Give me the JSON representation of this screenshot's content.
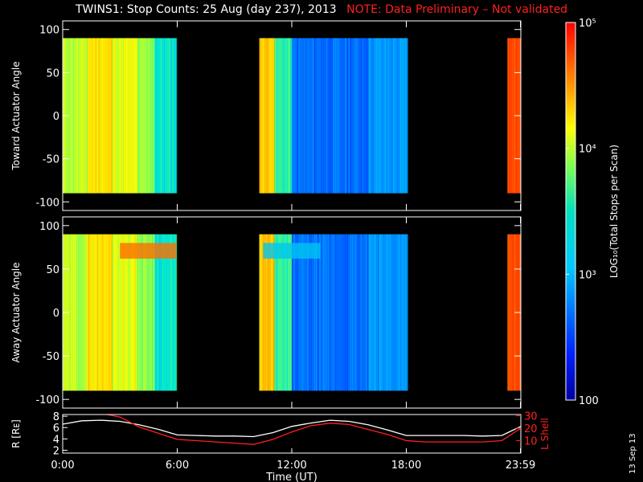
{
  "title": {
    "main": "TWINS1: Stop Counts: 25 Aug (day 237), 2013",
    "note": "NOTE: Data Preliminary – Not validated"
  },
  "stamp": "13 Sep 13",
  "colors": {
    "background": "#000000",
    "frame": "#ffffff",
    "note": "#ff2020",
    "r_line": "#ffffff",
    "lshell_line": "#ff2020"
  },
  "chart_data": [
    {
      "type": "heatmap",
      "panel": "toward",
      "ylabel": "Toward Actuator Angle",
      "ylim": [
        -110,
        110
      ],
      "yticks": [
        100,
        50,
        0,
        -50,
        -100
      ],
      "xlim_hours": [
        0,
        24
      ],
      "angle_range": [
        -90,
        90
      ],
      "data_segments_hours": [
        [
          0.0,
          5.95
        ],
        [
          10.3,
          18.05
        ],
        [
          23.3,
          23.98
        ]
      ],
      "log10_counts_by_time": [
        {
          "t_start": 0.0,
          "t_end": 1.3,
          "log10": 3.65
        },
        {
          "t_start": 1.3,
          "t_end": 2.6,
          "log10": 3.9
        },
        {
          "t_start": 2.6,
          "t_end": 3.9,
          "log10": 3.75
        },
        {
          "t_start": 3.9,
          "t_end": 4.8,
          "log10": 3.55
        },
        {
          "t_start": 4.8,
          "t_end": 5.95,
          "log10": 3.2
        },
        {
          "t_start": 10.3,
          "t_end": 11.1,
          "log10": 4.0
        },
        {
          "t_start": 11.1,
          "t_end": 12.0,
          "log10": 3.3
        },
        {
          "t_start": 12.0,
          "t_end": 16.0,
          "log10": 2.65
        },
        {
          "t_start": 16.0,
          "t_end": 18.05,
          "log10": 2.8
        },
        {
          "t_start": 23.3,
          "t_end": 23.98,
          "log10": 4.6
        }
      ]
    },
    {
      "type": "heatmap",
      "panel": "away",
      "ylabel": "Away Actuator Angle",
      "ylim": [
        -110,
        110
      ],
      "yticks": [
        100,
        50,
        0,
        -50,
        -100
      ],
      "xlim_hours": [
        0,
        24
      ],
      "angle_range": [
        -90,
        90
      ],
      "data_segments_hours": [
        [
          0.0,
          5.95
        ],
        [
          10.3,
          18.05
        ],
        [
          23.3,
          23.98
        ]
      ],
      "log10_counts_by_time": [
        {
          "t_start": 0.0,
          "t_end": 1.3,
          "log10": 3.65
        },
        {
          "t_start": 1.3,
          "t_end": 2.6,
          "log10": 3.9
        },
        {
          "t_start": 2.6,
          "t_end": 3.9,
          "log10": 3.75
        },
        {
          "t_start": 3.9,
          "t_end": 4.8,
          "log10": 3.55
        },
        {
          "t_start": 4.8,
          "t_end": 5.95,
          "log10": 3.2
        },
        {
          "t_start": 10.3,
          "t_end": 11.1,
          "log10": 4.0
        },
        {
          "t_start": 11.1,
          "t_end": 12.0,
          "log10": 3.3
        },
        {
          "t_start": 12.0,
          "t_end": 16.0,
          "log10": 2.65
        },
        {
          "t_start": 16.0,
          "t_end": 18.05,
          "log10": 2.8
        },
        {
          "t_start": 23.3,
          "t_end": 23.98,
          "log10": 4.6
        }
      ],
      "high_band": {
        "angle_range": [
          62,
          80
        ],
        "log10": 4.4
      }
    },
    {
      "type": "line",
      "panel": "orbit",
      "ylabel_left": "R [Rᴇ]",
      "ylabel_right": "L Shell",
      "xlabel": "Time (UT)",
      "xticks": [
        "0:00",
        "6:00",
        "12:00",
        "18:00",
        "23:59"
      ],
      "xtick_hours": [
        0,
        6,
        12,
        18,
        23.98
      ],
      "ylim_left": [
        1.5,
        8.3
      ],
      "yticks_left": [
        2,
        4,
        6,
        8
      ],
      "ylim_right": [
        0,
        31
      ],
      "yticks_right": [
        10,
        20,
        30
      ],
      "series": [
        {
          "name": "R",
          "axis": "left",
          "x": [
            0,
            1,
            2,
            3,
            4,
            5,
            6,
            7,
            8,
            9,
            10,
            11,
            12,
            13,
            14,
            15,
            16,
            17,
            18,
            19,
            20,
            21,
            22,
            23,
            24
          ],
          "y": [
            6.6,
            7.2,
            7.3,
            7.1,
            6.5,
            5.7,
            4.7,
            4.6,
            4.5,
            4.5,
            4.4,
            5.1,
            6.2,
            6.8,
            7.3,
            7.1,
            6.5,
            5.6,
            4.6,
            4.6,
            4.6,
            4.6,
            4.5,
            4.6,
            6.2
          ]
        },
        {
          "name": "L Shell",
          "axis": "right",
          "x": [
            0,
            1,
            2,
            3,
            4,
            5,
            6,
            7,
            8,
            9,
            10,
            11,
            12,
            13,
            14,
            15,
            16,
            17,
            18,
            19,
            20,
            21,
            22,
            23,
            24
          ],
          "y": [
            31,
            32,
            32,
            29,
            21,
            16,
            11,
            10,
            9,
            8,
            7,
            11,
            17,
            22,
            24,
            23,
            19,
            15,
            10,
            9,
            9,
            9,
            9,
            10,
            20
          ]
        }
      ]
    }
  ],
  "colorbar": {
    "label": "LOG₁₀(Total Stops per Scan)",
    "range_log10": [
      2,
      5
    ],
    "ticks": [
      {
        "log10": 5,
        "label": "10⁵"
      },
      {
        "log10": 4,
        "label": "10⁴"
      },
      {
        "log10": 3,
        "label": "10³"
      },
      {
        "log10": 2,
        "label": "100"
      }
    ]
  }
}
